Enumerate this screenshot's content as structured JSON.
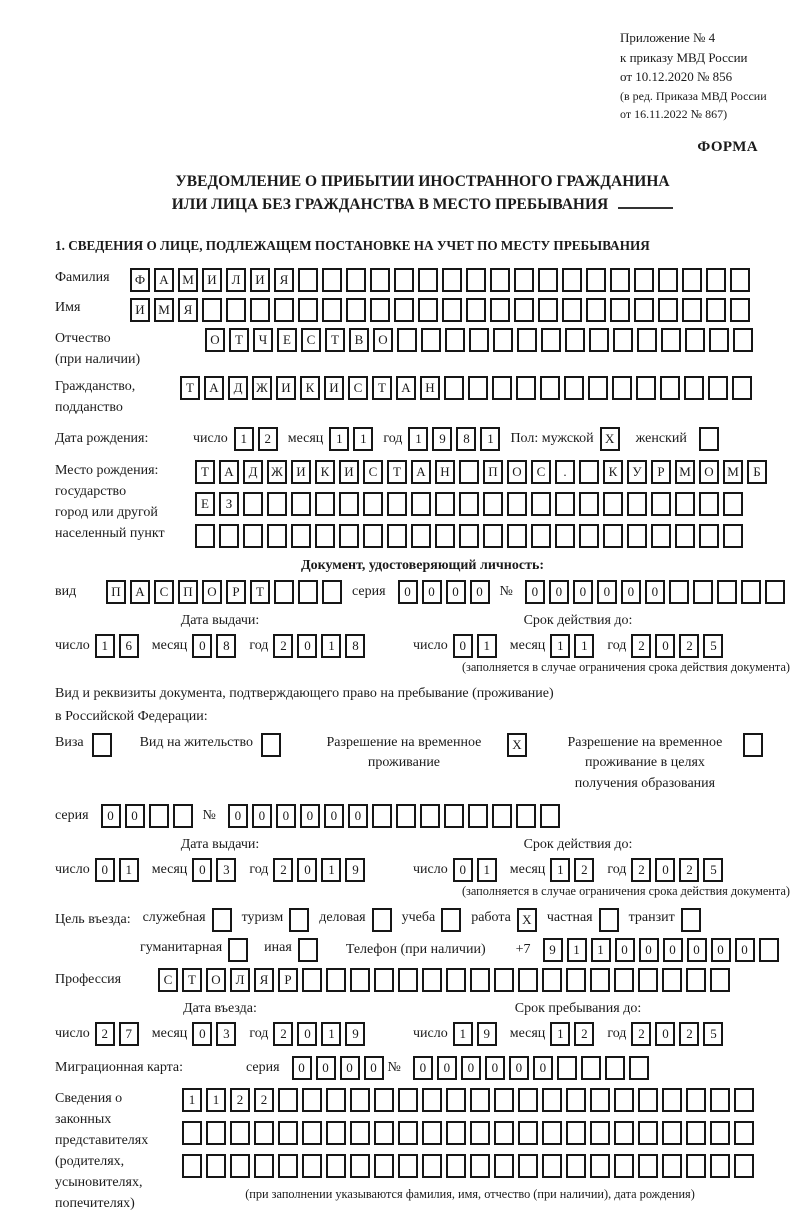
{
  "colors": {
    "ink": "#1a1a1a",
    "paper": "#ffffff"
  },
  "header": {
    "app_line1": "Приложение № 4",
    "app_line2": "к приказу МВД России",
    "app_line3": "от 10.12.2020 № 856",
    "amend_line1": "(в ред. Приказа МВД России",
    "amend_line2": "от 16.11.2022 № 867)",
    "form_label": "ФОРМА"
  },
  "title": {
    "line1": "УВЕДОМЛЕНИЕ О ПРИБЫТИИ ИНОСТРАННОГО ГРАЖДАНИНА",
    "line2": "ИЛИ ЛИЦА БЕЗ ГРАЖДАНСТВА В МЕСТО ПРЕБЫВАНИЯ"
  },
  "section1_title": "1. СВЕДЕНИЯ О ЛИЦЕ, ПОДЛЕЖАЩЕМ ПОСТАНОВКЕ НА УЧЕТ ПО МЕСТУ ПРЕБЫВАНИЯ",
  "words": {
    "day": "число",
    "month": "месяц",
    "year": "год",
    "series": "серия",
    "number": "№"
  },
  "validity_note": "(заполняется в случае ограничения срока действия документа)",
  "person": {
    "surname_label": "Фамилия",
    "surname": {
      "text": "ФАМИЛИЯ",
      "count": 26
    },
    "name_label": "Имя",
    "name": {
      "text": "ИМЯ",
      "count": 26
    },
    "patronymic_label": "Отчество",
    "patronymic_label2": "(при наличии)",
    "patronymic": {
      "text": "ОТЧЕСТВО",
      "count": 23
    },
    "citizenship_label": "Гражданство,",
    "citizenship_label2": "подданство",
    "citizenship": {
      "text": "ТАДЖИКИСТАН",
      "count": 24
    },
    "birthdate_label": "Дата рождения:",
    "birth_day": {
      "text": "12",
      "count": 2
    },
    "birth_month": {
      "text": "11",
      "count": 2
    },
    "birth_year": {
      "text": "1981",
      "count": 4
    },
    "sex_label": "Пол: мужской",
    "sex_male_mark": "X",
    "sex_female_label": "женский",
    "sex_female_mark": "",
    "birthplace_label": "Место рождения:",
    "birthplace_label2": "государство",
    "birthplace_label3": "город или другой",
    "birthplace_label4": "населенный пункт",
    "birthplace_row1": {
      "text": "ТАДЖИКИСТАН ПОС. КУРМОМБ",
      "count": 24
    },
    "birthplace_row2": {
      "text": "ЕЗ",
      "count": 23
    },
    "birthplace_row3": {
      "text": "",
      "count": 23
    }
  },
  "identity_doc": {
    "heading": "Документ, удостоверяющий личность:",
    "type_label": "вид",
    "type": {
      "text": "ПАСПОРТ",
      "count": 10
    },
    "series": {
      "text": "0000",
      "count": 4
    },
    "number": {
      "text": "000000",
      "count": 11
    },
    "issue_label": "Дата выдачи:",
    "issue_day": {
      "text": "16",
      "count": 2
    },
    "issue_month": {
      "text": "08",
      "count": 2
    },
    "issue_year": {
      "text": "2018",
      "count": 4
    },
    "valid_label": "Срок действия до:",
    "valid_day": {
      "text": "01",
      "count": 2
    },
    "valid_month": {
      "text": "11",
      "count": 2
    },
    "valid_year": {
      "text": "2025",
      "count": 4
    }
  },
  "residence_doc": {
    "heading1": "Вид и реквизиты документа, подтверждающего право на пребывание (проживание)",
    "heading2": "в Российской Федерации:",
    "visa_label": "Виза",
    "visa_mark": "",
    "residence_permit_label": "Вид на жительство",
    "residence_permit_mark": "",
    "temp_permit_label1": "Разрешение на временное",
    "temp_permit_label2": "проживание",
    "temp_permit_mark": "X",
    "edu_permit_label1": "Разрешение на временное",
    "edu_permit_label2": "проживание в целях",
    "edu_permit_label3": "получения образования",
    "edu_permit_mark": "",
    "series": {
      "text": "00",
      "count": 4
    },
    "number": {
      "text": "000000",
      "count": 14
    },
    "issue_label": "Дата выдачи:",
    "issue_day": {
      "text": "01",
      "count": 2
    },
    "issue_month": {
      "text": "03",
      "count": 2
    },
    "issue_year": {
      "text": "2019",
      "count": 4
    },
    "valid_label": "Срок действия до:",
    "valid_day": {
      "text": "01",
      "count": 2
    },
    "valid_month": {
      "text": "12",
      "count": 2
    },
    "valid_year": {
      "text": "2025",
      "count": 4
    }
  },
  "visit": {
    "purpose_label": "Цель въезда:",
    "purposes": [
      {
        "label": "служебная",
        "mark": ""
      },
      {
        "label": "туризм",
        "mark": ""
      },
      {
        "label": "деловая",
        "mark": ""
      },
      {
        "label": "учеба",
        "mark": ""
      },
      {
        "label": "работа",
        "mark": "X"
      },
      {
        "label": "частная",
        "mark": ""
      },
      {
        "label": "транзит",
        "mark": ""
      }
    ],
    "purposes2": [
      {
        "label": "гуманитарная",
        "mark": ""
      },
      {
        "label": "иная",
        "mark": ""
      }
    ],
    "phone_label": "Телефон (при наличии)",
    "phone_prefix": "+7",
    "phone": {
      "text": "911000000",
      "count": 10
    },
    "profession_label": "Профессия",
    "profession": {
      "text": "СТОЛЯР",
      "count": 24
    },
    "entry_label": "Дата въезда:",
    "entry_day": {
      "text": "27",
      "count": 2
    },
    "entry_month": {
      "text": "03",
      "count": 2
    },
    "entry_year": {
      "text": "2019",
      "count": 4
    },
    "stay_label": "Срок пребывания до:",
    "stay_day": {
      "text": "19",
      "count": 2
    },
    "stay_month": {
      "text": "12",
      "count": 2
    },
    "stay_year": {
      "text": "2025",
      "count": 4
    },
    "migration_card_label": "Миграционная карта:",
    "mig_series": {
      "text": "0000",
      "count": 4
    },
    "mig_number": {
      "text": "000000",
      "count": 10
    }
  },
  "guardians": {
    "label_lines": [
      "Сведения о",
      "законных",
      "представителях",
      "(родителях,",
      "усыновителях,",
      "попечителях)"
    ],
    "row1": {
      "text": "1122",
      "count": 24
    },
    "row2": {
      "text": "",
      "count": 24
    },
    "row3": {
      "text": "",
      "count": 24
    },
    "note": "(при заполнении указываются фамилия, имя, отчество (при наличии), дата рождения)"
  }
}
